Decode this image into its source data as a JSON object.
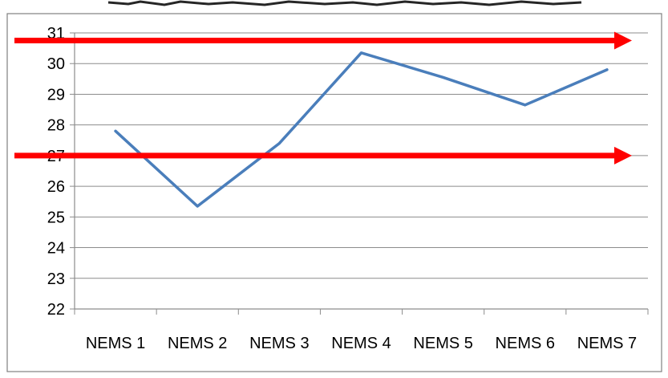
{
  "chart_data": {
    "type": "line",
    "title": "",
    "xlabel": "",
    "ylabel": "",
    "categories": [
      "NEMS 1",
      "NEMS 2",
      "NEMS 3",
      "NEMS 4",
      "NEMS 5",
      "NEMS 6",
      "NEMS 7"
    ],
    "series": [
      {
        "values": [
          27.8,
          25.35,
          27.4,
          30.35,
          29.55,
          28.65,
          29.8
        ],
        "color": "#4a7ebb"
      }
    ],
    "ylim": [
      22,
      31
    ],
    "yticks": [
      "22",
      "23",
      "24",
      "25",
      "26",
      "27",
      "28",
      "29",
      "30",
      "31"
    ],
    "grid": true,
    "legend": "none",
    "reference_lines": [
      {
        "value": 30.75,
        "color": "#ff0000",
        "style": "arrow"
      },
      {
        "value": 27.0,
        "color": "#ff0000",
        "style": "arrow"
      }
    ]
  }
}
